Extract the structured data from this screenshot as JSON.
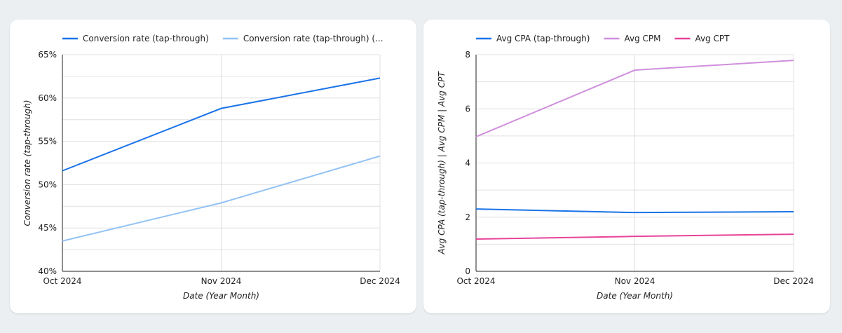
{
  "chart_data": [
    {
      "type": "line",
      "categories": [
        "Oct 2024",
        "Nov 2024",
        "Dec 2024"
      ],
      "xlabel": "Date (Year Month)",
      "ylabel": "Conversion rate (tap-through)",
      "ylim": [
        40,
        65
      ],
      "yticks": [
        40,
        45,
        50,
        55,
        60,
        65
      ],
      "ytick_labels": [
        "40%",
        "45%",
        "50%",
        "55%",
        "60%",
        "65%"
      ],
      "grid": true,
      "legend_position": "top",
      "series": [
        {
          "name": "Conversion rate (tap-through)",
          "color": "#1a73e8",
          "values": [
            51.6,
            58.8,
            62.3
          ]
        },
        {
          "name": "Conversion rate (tap-through) (...",
          "color": "#93c2f5",
          "values": [
            43.5,
            47.9,
            53.3
          ]
        }
      ]
    },
    {
      "type": "line",
      "categories": [
        "Oct 2024",
        "Nov 2024",
        "Dec 2024"
      ],
      "xlabel": "Date (Year Month)",
      "ylabel": "Avg CPA (tap-through) | Avg CPM | Avg CPT",
      "ylim": [
        0,
        8
      ],
      "yticks": [
        0,
        2,
        4,
        6,
        8
      ],
      "ytick_labels": [
        "0",
        "2",
        "4",
        "6",
        "8"
      ],
      "grid": true,
      "legend_position": "top",
      "series": [
        {
          "name": "Avg CPA (tap-through)",
          "color": "#1a73e8",
          "values": [
            2.3,
            2.17,
            2.2
          ]
        },
        {
          "name": "Avg CPM",
          "color": "#d08fdd",
          "values": [
            4.97,
            7.43,
            7.79
          ]
        },
        {
          "name": "Avg CPT",
          "color": "#e8439a",
          "values": [
            1.19,
            1.29,
            1.37
          ]
        }
      ]
    }
  ]
}
